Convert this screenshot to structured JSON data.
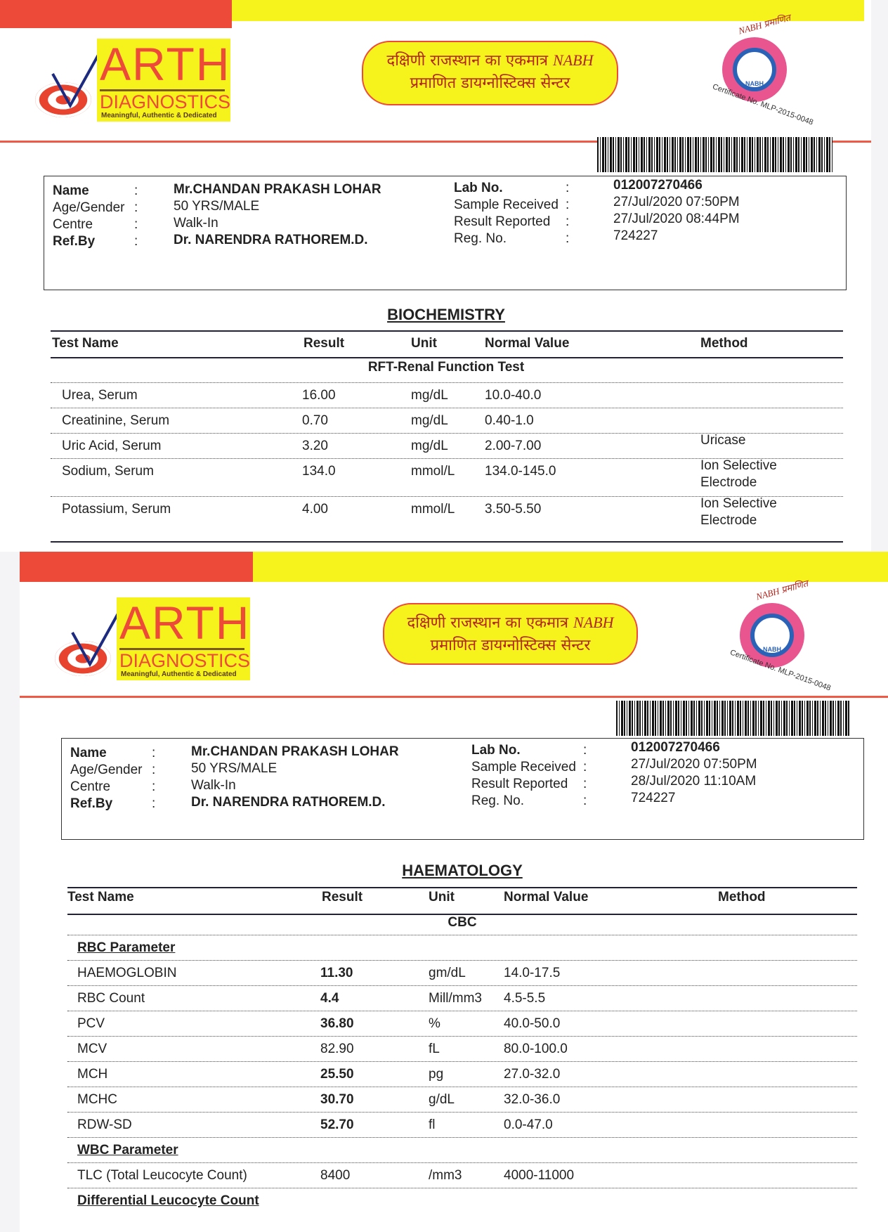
{
  "brand": {
    "name": "ARTH",
    "sub": "DIAGNOSTICS",
    "tagline": "Meaningful, Authentic & Dedicated",
    "slogan_line1": "दक्षिणी राजस्थान का एकमात्र",
    "slogan_nabh": "NABH",
    "slogan_line2": "प्रमाणित डायग्नोस्टिक्स सेन्टर",
    "seal_top": "NABH प्रमाणित",
    "seal_center": "NABH",
    "seal_cert": "Certificate No. MLP-2015-0048",
    "colors": {
      "red": "#ee4a3a",
      "yellow": "#f6f21c",
      "seal_pink": "#e9558f",
      "seal_blue": "#2a62b8"
    }
  },
  "reports": [
    {
      "patient": {
        "name_label": "Name",
        "name": "Mr.CHANDAN PRAKASH LOHAR",
        "age_label": "Age/Gender",
        "age": "50 YRS/MALE",
        "centre_label": "Centre",
        "centre": "Walk-In",
        "ref_label": "Ref.By",
        "ref": "Dr. NARENDRA RATHOREM.D.",
        "lab_label": "Lab No.",
        "lab": "012007270466",
        "sample_label": "Sample Received",
        "sample": "27/Jul/2020 07:50PM",
        "result_label": "Result Reported",
        "result": "27/Jul/2020 08:44PM",
        "reg_label": "Reg. No.",
        "reg": "724227",
        "sep": ":"
      },
      "section": "BIOCHEMISTRY",
      "columns": [
        "Test Name",
        "Result",
        "Unit",
        "Normal Value",
        "Method"
      ],
      "panel": "RFT-Renal Function Test",
      "rows": [
        {
          "test": "Urea, Serum",
          "result": "16.00",
          "unit": "mg/dL",
          "normal": "10.0-40.0",
          "method": ""
        },
        {
          "test": "Creatinine, Serum",
          "result": "0.70",
          "unit": "mg/dL",
          "normal": "0.40-1.0",
          "method": ""
        },
        {
          "test": "Uric Acid, Serum",
          "result": "3.20",
          "unit": "mg/dL",
          "normal": "2.00-7.00",
          "method": "Uricase"
        },
        {
          "test": "Sodium, Serum",
          "result": "134.0",
          "unit": "mmol/L",
          "normal": "134.0-145.0",
          "method": "Ion Selective",
          "method2": "Electrode"
        },
        {
          "test": "Potassium, Serum",
          "result": "4.00",
          "unit": "mmol/L",
          "normal": "3.50-5.50",
          "method": "Ion Selective",
          "method2": "Electrode"
        }
      ]
    },
    {
      "patient": {
        "name_label": "Name",
        "name": "Mr.CHANDAN PRAKASH LOHAR",
        "age_label": "Age/Gender",
        "age": "50 YRS/MALE",
        "centre_label": "Centre",
        "centre": "Walk-In",
        "ref_label": "Ref.By",
        "ref": "Dr. NARENDRA RATHOREM.D.",
        "lab_label": "Lab No.",
        "lab": "012007270466",
        "sample_label": "Sample Received",
        "sample": "27/Jul/2020 07:50PM",
        "result_label": "Result Reported",
        "result": "28/Jul/2020 11:10AM",
        "reg_label": "Reg. No.",
        "reg": "724227",
        "sep": ":"
      },
      "section": "HAEMATOLOGY",
      "columns": [
        "Test Name",
        "Result",
        "Unit",
        "Normal Value",
        "Method"
      ],
      "panel": "CBC",
      "rows": [
        {
          "subheading": "RBC Parameter"
        },
        {
          "test": "HAEMOGLOBIN",
          "result": "11.30",
          "unit": "gm/dL",
          "normal": "14.0-17.5",
          "bold": true
        },
        {
          "test": "RBC Count",
          "result": "4.4",
          "unit": "Mill/mm3",
          "normal": "4.5-5.5",
          "bold": true
        },
        {
          "test": "PCV",
          "result": "36.80",
          "unit": "%",
          "normal": "40.0-50.0",
          "bold": true
        },
        {
          "test": "MCV",
          "result": "82.90",
          "unit": "fL",
          "normal": "80.0-100.0"
        },
        {
          "test": "MCH",
          "result": "25.50",
          "unit": "pg",
          "normal": "27.0-32.0",
          "bold": true
        },
        {
          "test": "MCHC",
          "result": "30.70",
          "unit": "g/dL",
          "normal": "32.0-36.0",
          "bold": true
        },
        {
          "test": "RDW-SD",
          "result": "52.70",
          "unit": "fl",
          "normal": "0.0-47.0",
          "bold": true
        },
        {
          "subheading": "WBC Parameter"
        },
        {
          "test": "TLC (Total Leucocyte Count)",
          "result": "8400",
          "unit": "/mm3",
          "normal": "4000-11000"
        },
        {
          "subheading": "Differential Leucocyte Count"
        }
      ]
    }
  ]
}
